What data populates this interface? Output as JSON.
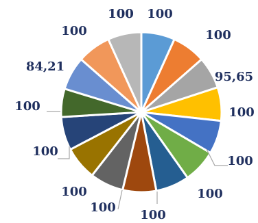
{
  "chart_data": {
    "type": "pie",
    "title": "",
    "values": [
      100,
      100,
      95.65,
      100,
      100,
      100,
      100,
      100,
      100,
      100,
      100,
      84.21,
      100,
      100,
      100
    ],
    "data_labels": [
      "100",
      "100",
      "95,65",
      "100",
      "100",
      "100",
      "100",
      "100",
      "100",
      "100",
      "100",
      "84,21",
      "100",
      "100",
      "100"
    ],
    "colors": [
      "#5b9bd5",
      "#ed7d31",
      "#a5a5a5",
      "#ffc000",
      "#4472c4",
      "#70ad47",
      "#255e91",
      "#9e480e",
      "#636363",
      "#997300",
      "#264478",
      "#43682b",
      "#698ed0",
      "#f1975a",
      "#b7b7b7"
    ],
    "start": "12 o'clock",
    "direction": "clockwise",
    "legend": "none",
    "label_color": "#1f2f5e"
  }
}
